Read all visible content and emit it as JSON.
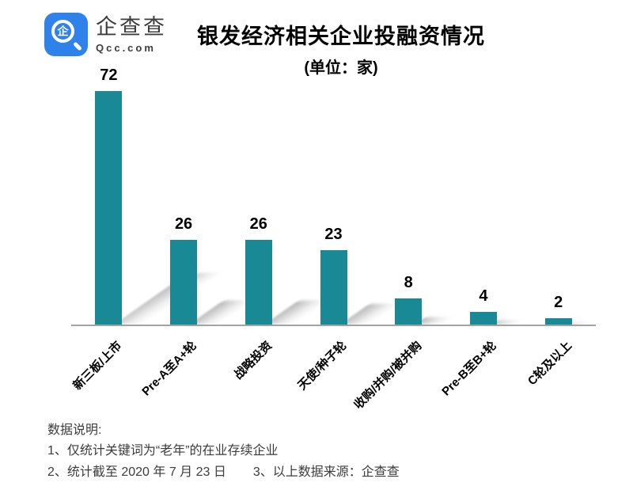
{
  "logo": {
    "icon_char": "企",
    "name": "企查查",
    "domain": "Qcc.com",
    "brand_color": "#2e82e9"
  },
  "title": "银发经济相关企业投融资情况",
  "subtitle": "(单位：家)",
  "chart_data": {
    "type": "bar",
    "title": "银发经济相关企业投融资情况",
    "subtitle": "(单位：家)",
    "unit": "家",
    "categories": [
      "新三板/上市",
      "Pre-A至A+轮",
      "战略投资",
      "天使/种子轮",
      "收购/并购/被并购",
      "Pre-B至B+轮",
      "C轮及以上"
    ],
    "values": [
      72,
      26,
      26,
      23,
      8,
      4,
      2
    ],
    "bar_color": "#1a8996",
    "axis_color": "#a3a3a3",
    "ylim": [
      0,
      80
    ],
    "grid": false,
    "legend": false,
    "value_labels": true,
    "xlabel_rotation": 45
  },
  "notes": {
    "heading": "数据说明:",
    "items": [
      "1、仅统计关键词为“老年”的在业存续企业",
      "2、统计截至 2020 年 7 月 23 日",
      "3、以上数据来源：企查查"
    ]
  }
}
